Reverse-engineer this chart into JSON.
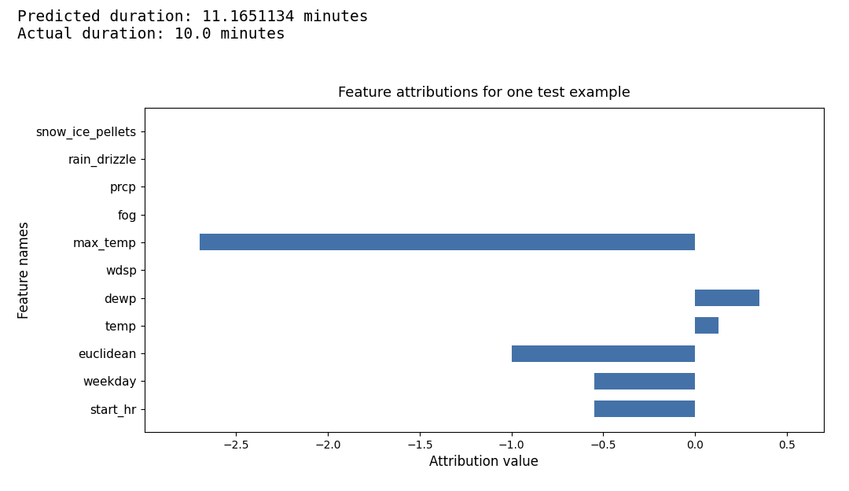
{
  "title": "Feature attributions for one test example",
  "xlabel": "Attribution value",
  "ylabel": "Feature names",
  "suptitle_line1": "Predicted duration: 11.1651134 minutes",
  "suptitle_line2": "Actual duration: 10.0 minutes",
  "features": [
    "start_hr",
    "weekday",
    "euclidean",
    "temp",
    "dewp",
    "wdsp",
    "max_temp",
    "fog",
    "prcp",
    "rain_drizzle",
    "snow_ice_pellets"
  ],
  "attributions": [
    -0.55,
    -0.55,
    -1.0,
    0.13,
    0.35,
    0.0,
    -2.7,
    0.0,
    0.0,
    0.0,
    0.0
  ],
  "bar_color": "#4472a8",
  "background_color": "#ffffff",
  "xlim": [
    -3.0,
    0.7
  ],
  "xticks": [
    -2.5,
    -2.0,
    -1.5,
    -1.0,
    -0.5,
    0.0,
    0.5
  ],
  "figsize": [
    10.8,
    6.24
  ],
  "dpi": 100,
  "suptitle_fontfamily": "monospace",
  "suptitle_fontsize": 14,
  "title_fontsize": 13,
  "label_fontsize": 11,
  "axis_label_fontsize": 12
}
